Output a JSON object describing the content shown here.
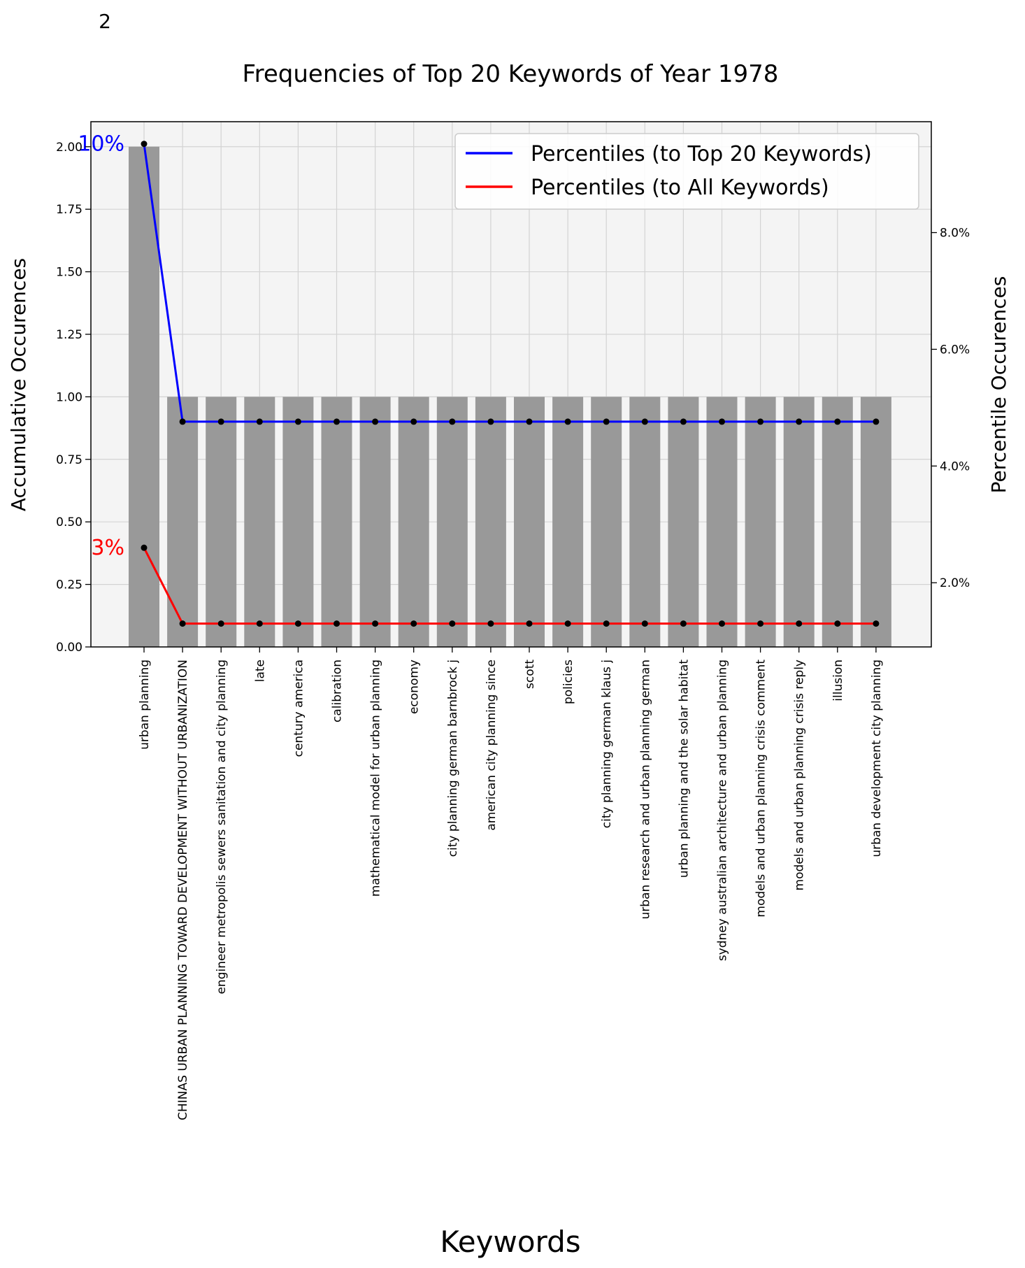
{
  "page": {
    "corner_label": "2"
  },
  "chart_data": {
    "type": "bar",
    "title": "Frequencies of Top 20 Keywords of Year 1978",
    "xlabel": "Keywords",
    "ylabel": "Accumulative Occurences",
    "ylabel_right": "Percentile Occurences",
    "ylim": [
      0,
      2.1
    ],
    "ylim_right": [
      0.9,
      9.9
    ],
    "yticks": [
      "0.00",
      "0.25",
      "0.50",
      "0.75",
      "1.00",
      "1.25",
      "1.50",
      "1.75",
      "2.00"
    ],
    "yticks_right": [
      "2.0%",
      "4.0%",
      "6.0%",
      "8.0%"
    ],
    "grid": true,
    "legend_position": "top-right",
    "categories": [
      "urban planning",
      "CHINAS URBAN PLANNING TOWARD DEVELOPMENT WITHOUT URBANIZATION",
      "engineer metropolis sewers sanitation and city planning",
      "late",
      "century america",
      "calibration",
      "mathematical model for urban planning",
      "economy",
      "city planning german barnbrock j",
      "american city planning since",
      "scott",
      "policies",
      "city planning german klaus j",
      "urban research and urban planning german",
      "urban planning and the solar habitat",
      "sydney australian architecture and urban planning",
      "models and urban planning crisis comment",
      "models and urban planning crisis reply",
      "illusion",
      "urban development city planning"
    ],
    "values": [
      2,
      1,
      1,
      1,
      1,
      1,
      1,
      1,
      1,
      1,
      1,
      1,
      1,
      1,
      1,
      1,
      1,
      1,
      1,
      1
    ],
    "series": [
      {
        "name": "Percentiles (to Top 20 Keywords)",
        "color": "#0000ff",
        "axis": "right",
        "values": [
          9.52,
          4.76,
          4.76,
          4.76,
          4.76,
          4.76,
          4.76,
          4.76,
          4.76,
          4.76,
          4.76,
          4.76,
          4.76,
          4.76,
          4.76,
          4.76,
          4.76,
          4.76,
          4.76,
          4.76
        ],
        "first_label": "10%"
      },
      {
        "name": "Percentiles (to All Keywords)",
        "color": "#ff0000",
        "axis": "right",
        "values": [
          2.6,
          1.3,
          1.3,
          1.3,
          1.3,
          1.3,
          1.3,
          1.3,
          1.3,
          1.3,
          1.3,
          1.3,
          1.3,
          1.3,
          1.3,
          1.3,
          1.3,
          1.3,
          1.3,
          1.3
        ],
        "first_label": "3%"
      }
    ],
    "colors": {
      "bar": "#999999",
      "plot_bg": "#f4f4f4",
      "grid": "#d3d3d3"
    }
  }
}
